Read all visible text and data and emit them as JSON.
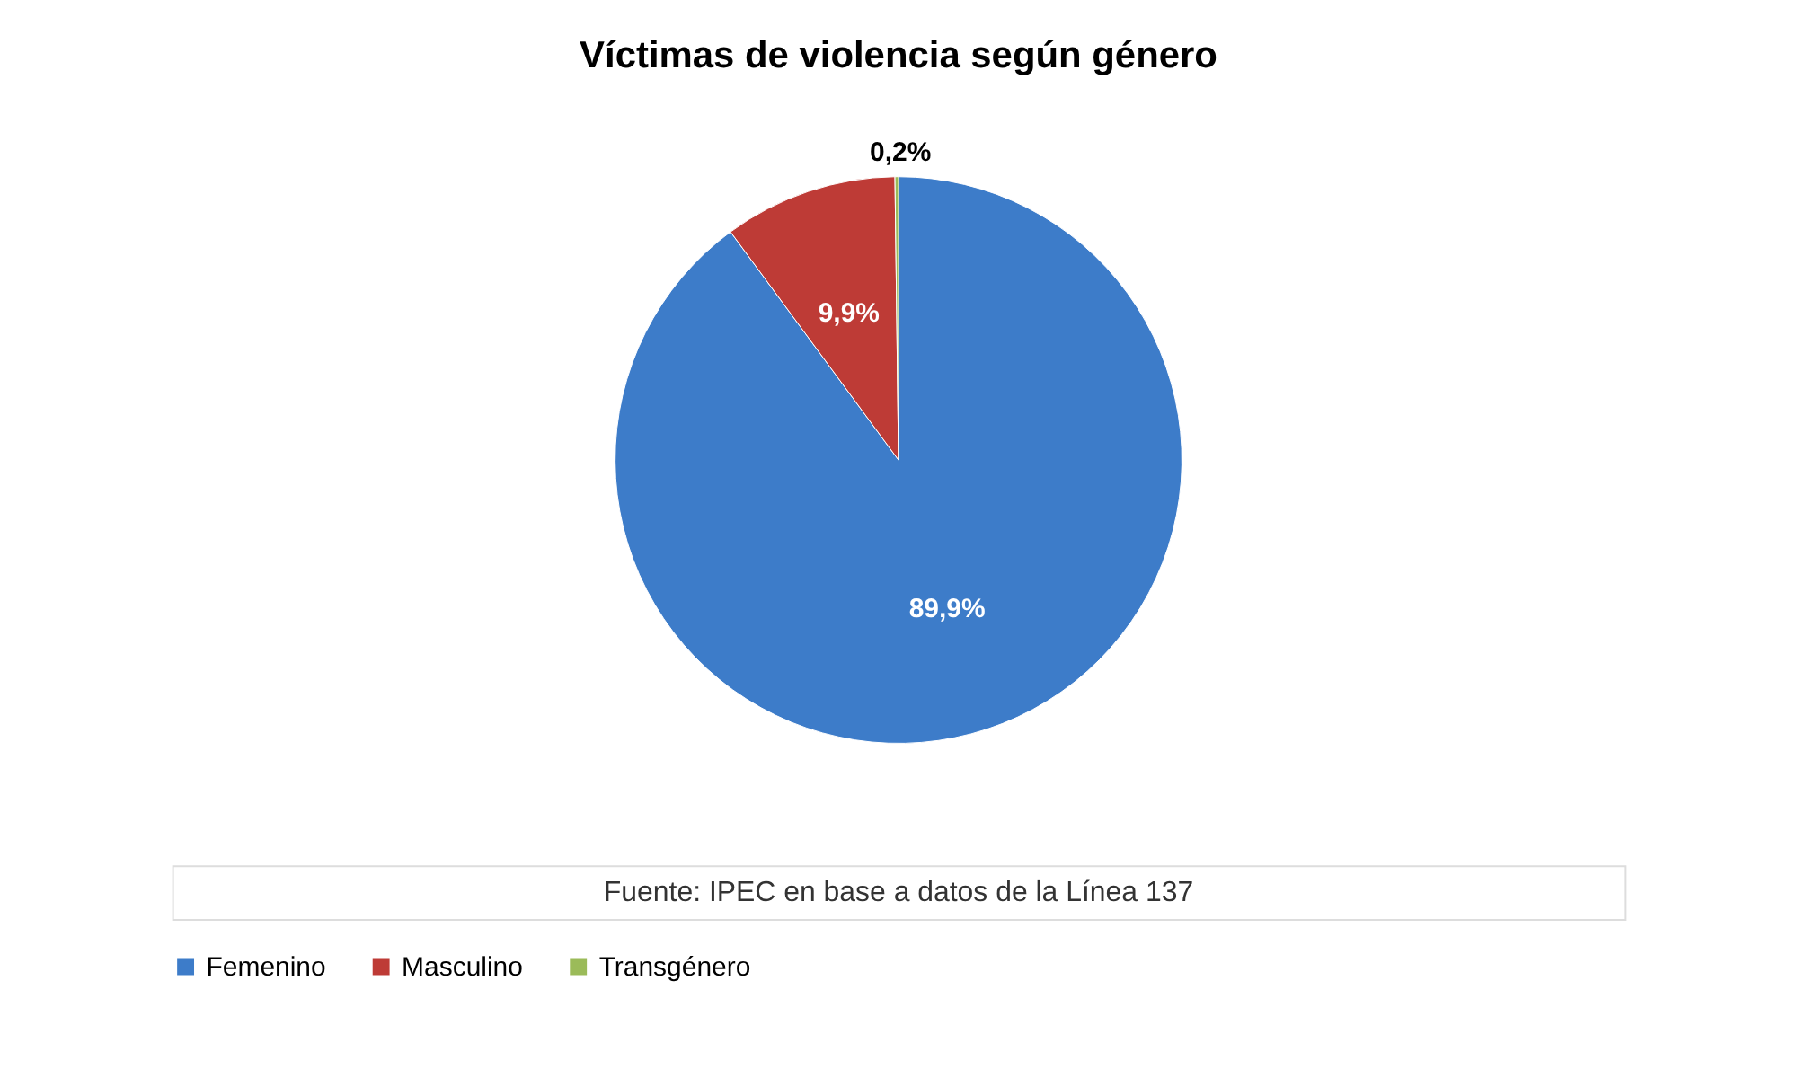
{
  "chart_data": {
    "type": "pie",
    "title": "Víctimas de violencia según género",
    "categories": [
      "Femenino",
      "Masculino",
      "Transgénero"
    ],
    "values": [
      89.9,
      9.9,
      0.2
    ],
    "colors": [
      "#3d7cc9",
      "#be3b36",
      "#9bbb59"
    ],
    "value_labels": [
      "89,9%",
      "9,9%",
      "0,2%"
    ],
    "legend": "bottom",
    "annotations": [
      "Fuente: IPEC en base a datos de la Línea 137"
    ]
  }
}
